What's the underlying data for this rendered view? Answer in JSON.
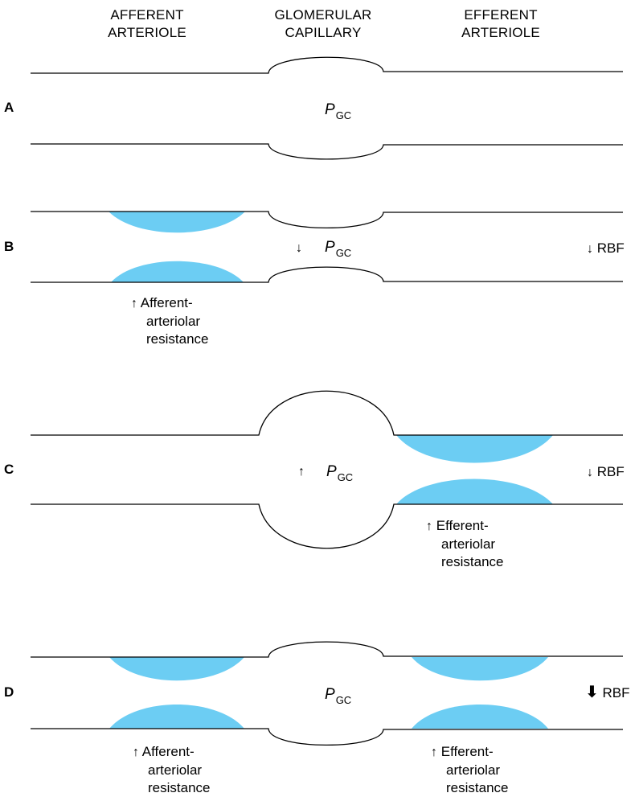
{
  "columns": {
    "afferent": {
      "line1": "AFFERENT",
      "line2": "ARTERIOLE"
    },
    "glomerular": {
      "line1": "GLOMERULAR",
      "line2": "CAPILLARY"
    },
    "efferent": {
      "line1": "EFFERENT",
      "line2": "ARTERIOLE"
    }
  },
  "panels": {
    "A": {
      "letter": "A",
      "pgc_main": "P",
      "pgc_sub": "GC"
    },
    "B": {
      "letter": "B",
      "pgc_arrow": "↓",
      "pgc_main": "P",
      "pgc_sub": "GC",
      "rbf_arrow": "↓",
      "rbf": "RBF",
      "afferent_note": {
        "arrow": "↑",
        "line1": "Afferent-",
        "line2": "arteriolar",
        "line3": "resistance"
      }
    },
    "C": {
      "letter": "C",
      "pgc_arrow": "↑",
      "pgc_main": "P",
      "pgc_sub": "GC",
      "rbf_arrow": "↓",
      "rbf": "RBF",
      "efferent_note": {
        "arrow": "↑",
        "line1": "Efferent-",
        "line2": "arteriolar",
        "line3": "resistance"
      }
    },
    "D": {
      "letter": "D",
      "pgc_main": "P",
      "pgc_sub": "GC",
      "rbf_arrow": "⬇",
      "rbf": "RBF",
      "afferent_note": {
        "arrow": "↑",
        "line1": "Afferent-",
        "line2": "arteriolar",
        "line3": "resistance"
      },
      "efferent_note": {
        "arrow": "↑",
        "line1": "Efferent-",
        "line2": "arteriolar",
        "line3": "resistance"
      }
    }
  },
  "colors": {
    "constriction": "#6ccdf3",
    "line": "#000000"
  }
}
